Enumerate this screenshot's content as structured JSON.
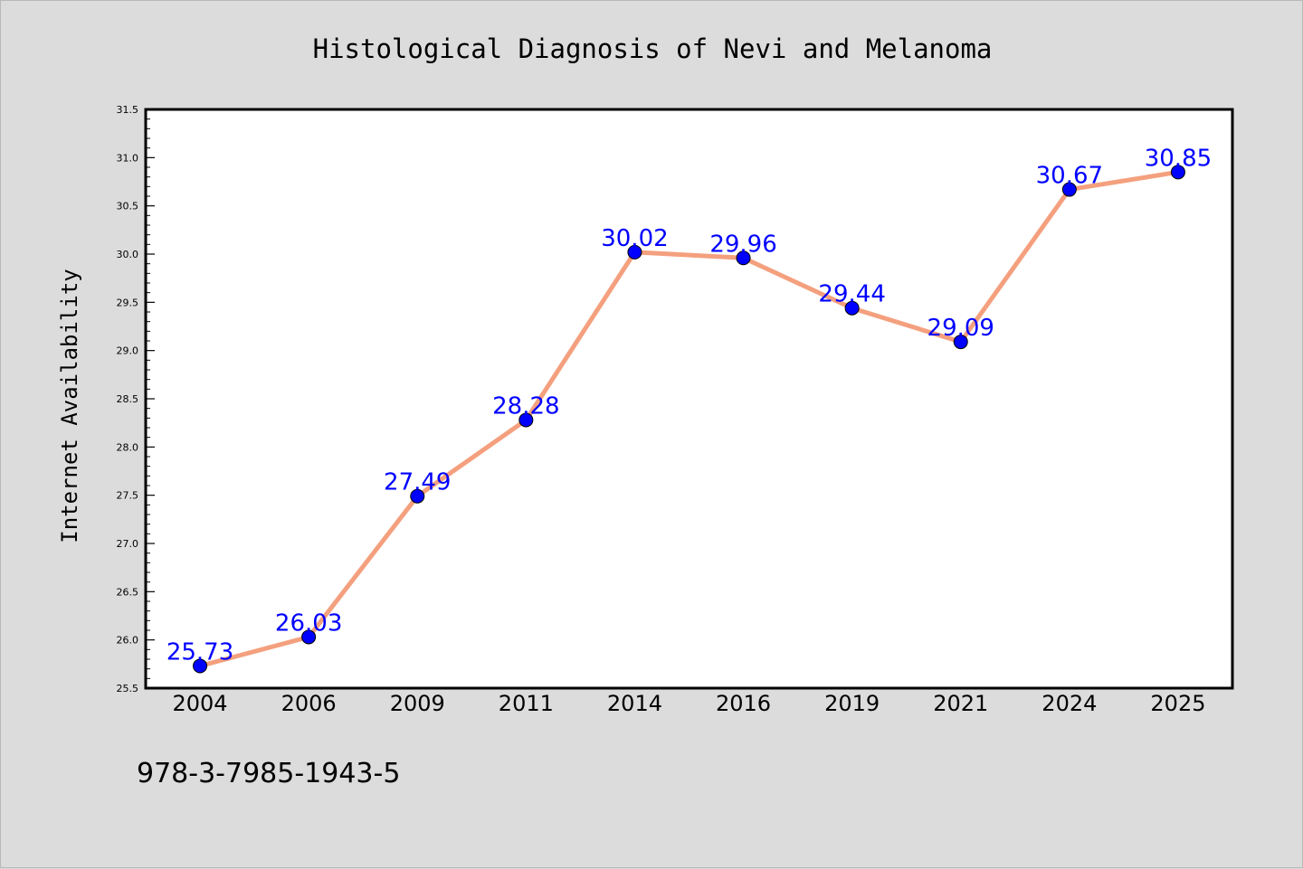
{
  "chart_data": {
    "type": "line",
    "title": "Histological Diagnosis of Nevi and Melanoma",
    "xlabel": "",
    "ylabel": "Internet Availability",
    "categories": [
      "2004",
      "2006",
      "2009",
      "2011",
      "2014",
      "2016",
      "2019",
      "2021",
      "2024",
      "2025"
    ],
    "series": [
      {
        "values": [
          25.73,
          26.03,
          27.49,
          28.28,
          30.02,
          29.96,
          29.44,
          29.09,
          30.67,
          30.85
        ],
        "line_color": "#f4a07e",
        "marker_color": "#0000ff"
      }
    ],
    "data_labels": [
      "25.73",
      "26.03",
      "27.49",
      "28.28",
      "30.02",
      "29.96",
      "29.44",
      "29.09",
      "30.67",
      "30.85"
    ],
    "ylim": [
      25.5,
      31.5
    ],
    "yticks": [
      "25.5",
      "26.0",
      "26.5",
      "27.0",
      "27.5",
      "28.0",
      "28.5",
      "29.0",
      "29.5",
      "30.0",
      "30.5",
      "31.0",
      "31.5"
    ],
    "grid": false,
    "legend": "none",
    "colors": {
      "background": "#dcdcdc",
      "plot_background": "#ffffff",
      "axis": "#000000",
      "data_label": "#0000ff"
    }
  },
  "footer": {
    "isbn": "978-3-7985-1943-5"
  }
}
